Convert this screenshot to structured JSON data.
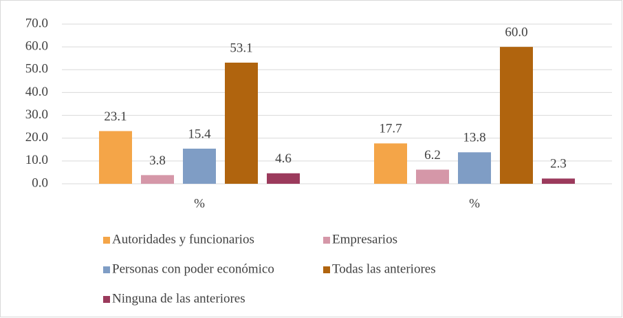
{
  "chart_data": {
    "type": "bar",
    "categories": [
      "%",
      "%"
    ],
    "series": [
      {
        "name": "Autoridades y funcionarios",
        "color": "#f4a548",
        "values": [
          23.1,
          17.7
        ],
        "value_labels": [
          "23.1",
          "17.7"
        ]
      },
      {
        "name": "Empresarios",
        "color": "#d597a8",
        "values": [
          3.8,
          6.2
        ],
        "value_labels": [
          "3.8",
          "6.2"
        ]
      },
      {
        "name": "Personas con poder económico",
        "color": "#7f9dc5",
        "values": [
          15.4,
          13.8
        ],
        "value_labels": [
          "15.4",
          "13.8"
        ]
      },
      {
        "name": "Todas las anteriores",
        "color": "#b0640e",
        "values": [
          53.1,
          60
        ],
        "value_labels": [
          "53.1",
          "60.0"
        ]
      },
      {
        "name": "Ninguna de las anteriores",
        "color": "#9b3a5c",
        "values": [
          4.6,
          2.3
        ],
        "value_labels": [
          "4.6",
          "2.3"
        ]
      }
    ],
    "ylim": [
      0,
      70
    ],
    "yticks": [
      {
        "value": 0,
        "label": "0.0"
      },
      {
        "value": 10,
        "label": "10.0"
      },
      {
        "value": 20,
        "label": "20.0"
      },
      {
        "value": 30,
        "label": "30.0"
      },
      {
        "value": 40,
        "label": "40.0"
      },
      {
        "value": 50,
        "label": "50.0"
      },
      {
        "value": 60,
        "label": "60.0"
      },
      {
        "value": 70,
        "label": "70.0"
      }
    ],
    "grid": true
  }
}
